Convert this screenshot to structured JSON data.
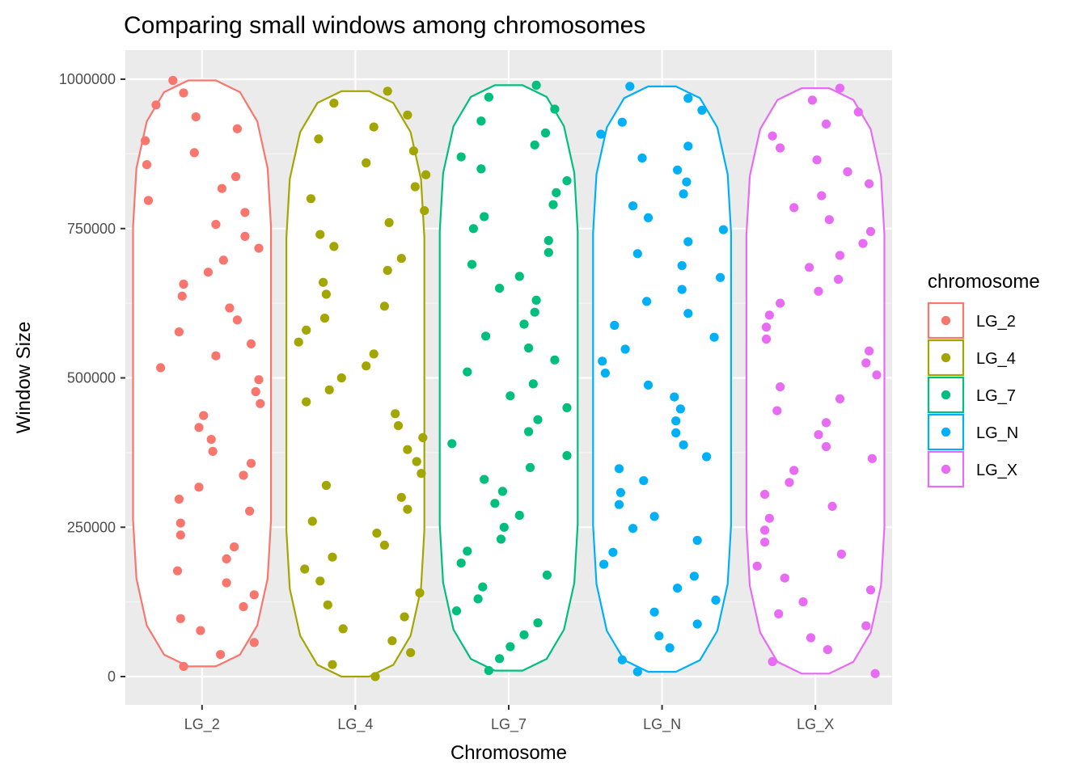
{
  "chart_data": {
    "type": "violin+jitter",
    "title": "Comparing small windows among chromosomes",
    "xlabel": "Chromosome",
    "ylabel": "Window Size",
    "ylim": [
      -50000,
      1050000
    ],
    "yticks": [
      0,
      250000,
      500000,
      750000,
      1000000
    ],
    "ytick_labels": [
      "0",
      "250000",
      "500000",
      "750000",
      "1000000"
    ],
    "categories": [
      "LG_2",
      "LG_4",
      "LG_7",
      "LG_N",
      "LG_X"
    ],
    "colors": [
      "#F8766D",
      "#A3A500",
      "#00BF7D",
      "#00B0F6",
      "#E76BF3"
    ],
    "panel_background": "#EBEBEB",
    "grid": true,
    "legend": {
      "title": "chromosome",
      "position": "right",
      "entries": [
        "LG_2",
        "LG_4",
        "LG_7",
        "LG_N",
        "LG_X"
      ]
    },
    "series": [
      {
        "name": "LG_2",
        "violin_half_width": 0.45,
        "y_range": [
          17000,
          998000
        ],
        "points": [
          [
            -0.19,
            998000
          ],
          [
            -0.3,
            957000
          ],
          [
            -0.12,
            977000
          ],
          [
            -0.37,
            897000
          ],
          [
            -0.36,
            857000
          ],
          [
            -0.35,
            797000
          ],
          [
            -0.04,
            937000
          ],
          [
            0.23,
            917000
          ],
          [
            -0.05,
            877000
          ],
          [
            0.22,
            837000
          ],
          [
            0.13,
            817000
          ],
          [
            0.28,
            777000
          ],
          [
            0.09,
            757000
          ],
          [
            0.28,
            737000
          ],
          [
            0.37,
            717000
          ],
          [
            0.14,
            697000
          ],
          [
            0.04,
            677000
          ],
          [
            -0.12,
            657000
          ],
          [
            -0.13,
            637000
          ],
          [
            0.18,
            617000
          ],
          [
            0.23,
            597000
          ],
          [
            -0.15,
            577000
          ],
          [
            0.32,
            557000
          ],
          [
            0.09,
            537000
          ],
          [
            -0.27,
            517000
          ],
          [
            0.37,
            497000
          ],
          [
            0.35,
            477000
          ],
          [
            0.38,
            457000
          ],
          [
            0.01,
            437000
          ],
          [
            -0.02,
            417000
          ],
          [
            0.06,
            397000
          ],
          [
            0.07,
            377000
          ],
          [
            0.32,
            357000
          ],
          [
            0.27,
            337000
          ],
          [
            -0.02,
            317000
          ],
          [
            -0.15,
            297000
          ],
          [
            0.31,
            277000
          ],
          [
            -0.14,
            257000
          ],
          [
            -0.14,
            237000
          ],
          [
            0.21,
            217000
          ],
          [
            0.16,
            197000
          ],
          [
            -0.16,
            177000
          ],
          [
            0.16,
            157000
          ],
          [
            0.34,
            137000
          ],
          [
            0.27,
            117000
          ],
          [
            -0.14,
            97000
          ],
          [
            -0.01,
            77000
          ],
          [
            0.34,
            57000
          ],
          [
            0.12,
            37000
          ],
          [
            -0.12,
            17000
          ]
        ]
      },
      {
        "name": "LG_4",
        "violin_half_width": 0.45,
        "y_range": [
          0,
          980000
        ],
        "points": [
          [
            0.21,
            980000
          ],
          [
            -0.14,
            960000
          ],
          [
            0.34,
            940000
          ],
          [
            0.12,
            920000
          ],
          [
            -0.24,
            900000
          ],
          [
            0.38,
            880000
          ],
          [
            0.07,
            860000
          ],
          [
            0.46,
            840000
          ],
          [
            0.39,
            820000
          ],
          [
            -0.29,
            800000
          ],
          [
            0.45,
            780000
          ],
          [
            0.22,
            760000
          ],
          [
            -0.23,
            740000
          ],
          [
            -0.14,
            720000
          ],
          [
            0.3,
            700000
          ],
          [
            0.21,
            680000
          ],
          [
            -0.21,
            660000
          ],
          [
            0.19,
            620000
          ],
          [
            -0.19,
            640000
          ],
          [
            -0.2,
            600000
          ],
          [
            -0.32,
            580000
          ],
          [
            -0.37,
            560000
          ],
          [
            0.12,
            540000
          ],
          [
            0.07,
            520000
          ],
          [
            -0.09,
            500000
          ],
          [
            -0.17,
            480000
          ],
          [
            -0.32,
            460000
          ],
          [
            0.26,
            440000
          ],
          [
            0.28,
            420000
          ],
          [
            0.44,
            400000
          ],
          [
            0.34,
            380000
          ],
          [
            0.4,
            360000
          ],
          [
            0.43,
            340000
          ],
          [
            -0.19,
            320000
          ],
          [
            0.3,
            300000
          ],
          [
            0.34,
            280000
          ],
          [
            -0.28,
            260000
          ],
          [
            0.14,
            240000
          ],
          [
            0.19,
            220000
          ],
          [
            -0.15,
            200000
          ],
          [
            -0.33,
            180000
          ],
          [
            -0.23,
            160000
          ],
          [
            0.42,
            140000
          ],
          [
            -0.18,
            120000
          ],
          [
            0.32,
            100000
          ],
          [
            -0.08,
            80000
          ],
          [
            0.24,
            60000
          ],
          [
            0.36,
            40000
          ],
          [
            -0.15,
            20000
          ],
          [
            0.13,
            0
          ]
        ]
      },
      {
        "name": "LG_7",
        "violin_half_width": 0.45,
        "y_range": [
          10000,
          990000
        ],
        "points": [
          [
            0.18,
            990000
          ],
          [
            -0.13,
            970000
          ],
          [
            0.3,
            950000
          ],
          [
            -0.18,
            930000
          ],
          [
            0.24,
            910000
          ],
          [
            0.17,
            890000
          ],
          [
            -0.31,
            870000
          ],
          [
            -0.18,
            850000
          ],
          [
            0.38,
            830000
          ],
          [
            0.31,
            810000
          ],
          [
            0.29,
            790000
          ],
          [
            -0.16,
            770000
          ],
          [
            -0.23,
            750000
          ],
          [
            0.26,
            730000
          ],
          [
            0.26,
            710000
          ],
          [
            -0.24,
            690000
          ],
          [
            0.07,
            670000
          ],
          [
            -0.06,
            650000
          ],
          [
            0.18,
            630000
          ],
          [
            0.17,
            610000
          ],
          [
            0.1,
            590000
          ],
          [
            -0.15,
            570000
          ],
          [
            0.13,
            550000
          ],
          [
            0.3,
            530000
          ],
          [
            -0.27,
            510000
          ],
          [
            0.16,
            490000
          ],
          [
            0.01,
            470000
          ],
          [
            0.38,
            450000
          ],
          [
            0.19,
            430000
          ],
          [
            0.13,
            410000
          ],
          [
            -0.37,
            390000
          ],
          [
            0.38,
            370000
          ],
          [
            0.14,
            350000
          ],
          [
            -0.16,
            330000
          ],
          [
            -0.04,
            310000
          ],
          [
            -0.09,
            290000
          ],
          [
            0.07,
            270000
          ],
          [
            -0.03,
            250000
          ],
          [
            -0.05,
            230000
          ],
          [
            -0.27,
            210000
          ],
          [
            -0.31,
            190000
          ],
          [
            0.25,
            170000
          ],
          [
            -0.17,
            150000
          ],
          [
            -0.2,
            130000
          ],
          [
            -0.34,
            110000
          ],
          [
            0.19,
            90000
          ],
          [
            0.1,
            70000
          ],
          [
            0.01,
            50000
          ],
          [
            -0.06,
            30000
          ],
          [
            -0.13,
            10000
          ]
        ]
      },
      {
        "name": "LG_N",
        "violin_half_width": 0.45,
        "y_range": [
          8000,
          988000
        ],
        "points": [
          [
            -0.21,
            988000
          ],
          [
            0.17,
            968000
          ],
          [
            0.26,
            948000
          ],
          [
            -0.4,
            908000
          ],
          [
            -0.26,
            928000
          ],
          [
            0.17,
            888000
          ],
          [
            -0.13,
            868000
          ],
          [
            0.1,
            848000
          ],
          [
            0.16,
            828000
          ],
          [
            0.14,
            808000
          ],
          [
            -0.19,
            788000
          ],
          [
            -0.09,
            768000
          ],
          [
            0.4,
            748000
          ],
          [
            0.17,
            728000
          ],
          [
            -0.16,
            708000
          ],
          [
            0.13,
            688000
          ],
          [
            0.38,
            668000
          ],
          [
            0.13,
            648000
          ],
          [
            -0.1,
            628000
          ],
          [
            0.17,
            608000
          ],
          [
            -0.31,
            588000
          ],
          [
            0.34,
            568000
          ],
          [
            -0.24,
            548000
          ],
          [
            -0.39,
            528000
          ],
          [
            -0.37,
            508000
          ],
          [
            -0.09,
            488000
          ],
          [
            0.08,
            468000
          ],
          [
            0.12,
            448000
          ],
          [
            0.09,
            428000
          ],
          [
            0.09,
            408000
          ],
          [
            0.14,
            388000
          ],
          [
            0.29,
            368000
          ],
          [
            -0.28,
            348000
          ],
          [
            -0.12,
            328000
          ],
          [
            -0.27,
            308000
          ],
          [
            -0.28,
            288000
          ],
          [
            -0.05,
            268000
          ],
          [
            0.23,
            228000
          ],
          [
            -0.19,
            248000
          ],
          [
            -0.32,
            208000
          ],
          [
            -0.38,
            188000
          ],
          [
            0.21,
            168000
          ],
          [
            0.1,
            148000
          ],
          [
            0.35,
            128000
          ],
          [
            -0.05,
            108000
          ],
          [
            0.23,
            88000
          ],
          [
            -0.02,
            68000
          ],
          [
            0.05,
            48000
          ],
          [
            -0.26,
            28000
          ],
          [
            -0.16,
            8000
          ]
        ]
      },
      {
        "name": "LG_X",
        "violin_half_width": 0.45,
        "y_range": [
          5000,
          985000
        ],
        "points": [
          [
            0.16,
            985000
          ],
          [
            -0.02,
            965000
          ],
          [
            0.28,
            945000
          ],
          [
            0.07,
            925000
          ],
          [
            -0.28,
            905000
          ],
          [
            -0.23,
            885000
          ],
          [
            0.01,
            865000
          ],
          [
            0.21,
            845000
          ],
          [
            0.35,
            825000
          ],
          [
            0.04,
            805000
          ],
          [
            -0.14,
            785000
          ],
          [
            0.09,
            765000
          ],
          [
            0.36,
            745000
          ],
          [
            0.31,
            725000
          ],
          [
            0.16,
            705000
          ],
          [
            -0.04,
            685000
          ],
          [
            0.15,
            665000
          ],
          [
            0.02,
            645000
          ],
          [
            -0.23,
            625000
          ],
          [
            -0.3,
            605000
          ],
          [
            -0.32,
            585000
          ],
          [
            -0.32,
            565000
          ],
          [
            0.35,
            545000
          ],
          [
            0.33,
            525000
          ],
          [
            0.4,
            505000
          ],
          [
            -0.23,
            485000
          ],
          [
            0.16,
            465000
          ],
          [
            -0.25,
            445000
          ],
          [
            0.07,
            425000
          ],
          [
            0.02,
            405000
          ],
          [
            0.07,
            385000
          ],
          [
            0.37,
            365000
          ],
          [
            -0.14,
            345000
          ],
          [
            -0.17,
            325000
          ],
          [
            -0.33,
            305000
          ],
          [
            0.11,
            285000
          ],
          [
            -0.3,
            265000
          ],
          [
            -0.33,
            245000
          ],
          [
            -0.33,
            225000
          ],
          [
            0.17,
            205000
          ],
          [
            -0.38,
            185000
          ],
          [
            -0.2,
            165000
          ],
          [
            0.36,
            145000
          ],
          [
            -0.08,
            125000
          ],
          [
            -0.24,
            105000
          ],
          [
            0.33,
            85000
          ],
          [
            -0.03,
            65000
          ],
          [
            0.08,
            45000
          ],
          [
            -0.28,
            25000
          ],
          [
            0.39,
            5000
          ]
        ]
      }
    ]
  }
}
